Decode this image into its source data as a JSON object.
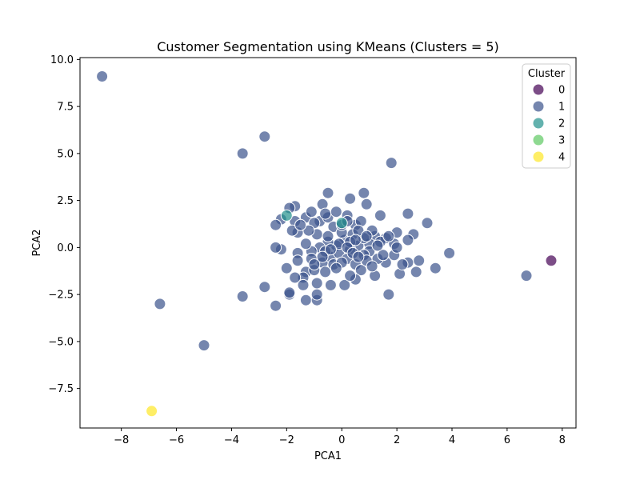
{
  "chart_data": {
    "type": "scatter",
    "title": "Customer Segmentation using KMeans (Clusters = 5)",
    "xlabel": "PCA1",
    "ylabel": "PCA2",
    "xlim": [
      -9.5,
      8.5
    ],
    "ylim": [
      -9.6,
      10.1
    ],
    "xticks": [
      -8,
      -6,
      -4,
      -2,
      0,
      2,
      4,
      6,
      8
    ],
    "yticks": [
      -7.5,
      -5.0,
      -2.5,
      0.0,
      2.5,
      5.0,
      7.5,
      10.0
    ],
    "xtick_labels": [
      "−8",
      "−6",
      "−4",
      "−2",
      "0",
      "2",
      "4",
      "6",
      "8"
    ],
    "ytick_labels": [
      "−7.5",
      "−5.0",
      "−2.5",
      "0.0",
      "2.5",
      "5.0",
      "7.5",
      "10.0"
    ],
    "grid": false,
    "legend": {
      "title": "Cluster",
      "placement": "top-right",
      "entries": [
        "0",
        "1",
        "2",
        "3",
        "4"
      ]
    },
    "series": [
      {
        "name": "0",
        "color": "#440154",
        "points": [
          [
            7.6,
            -0.7
          ]
        ]
      },
      {
        "name": "1",
        "color": "#3b528b",
        "points": [
          [
            -8.7,
            9.1
          ],
          [
            -2.8,
            5.9
          ],
          [
            -3.6,
            5.0
          ],
          [
            1.8,
            4.5
          ],
          [
            -6.6,
            -3.0
          ],
          [
            -5.0,
            -5.2
          ],
          [
            6.7,
            -1.5
          ],
          [
            -3.6,
            -2.6
          ],
          [
            -2.8,
            -2.1
          ],
          [
            -2.4,
            -3.1
          ],
          [
            -1.9,
            -2.5
          ],
          [
            -1.9,
            -2.4
          ],
          [
            -1.3,
            -2.8
          ],
          [
            -0.9,
            -2.8
          ],
          [
            -0.9,
            -2.5
          ],
          [
            -0.4,
            -2.0
          ],
          [
            0.1,
            -2.0
          ],
          [
            -0.5,
            2.9
          ],
          [
            0.8,
            2.9
          ],
          [
            0.3,
            2.6
          ],
          [
            0.9,
            2.3
          ],
          [
            -0.7,
            2.3
          ],
          [
            -1.7,
            2.2
          ],
          [
            -1.9,
            2.1
          ],
          [
            -2.2,
            1.5
          ],
          [
            -2.4,
            1.2
          ],
          [
            -1.7,
            1.4
          ],
          [
            -1.6,
            0.8
          ],
          [
            -1.3,
            1.6
          ],
          [
            -1.1,
            1.9
          ],
          [
            -0.8,
            1.4
          ],
          [
            -0.5,
            1.6
          ],
          [
            -0.2,
            1.9
          ],
          [
            0.2,
            1.7
          ],
          [
            0.5,
            1.2
          ],
          [
            0.7,
            1.4
          ],
          [
            1.4,
            1.7
          ],
          [
            2.4,
            1.8
          ],
          [
            3.1,
            1.3
          ],
          [
            2.6,
            0.7
          ],
          [
            2.4,
            0.4
          ],
          [
            2.0,
            0.8
          ],
          [
            1.6,
            0.5
          ],
          [
            1.2,
            0.6
          ],
          [
            1.0,
            0.2
          ],
          [
            0.6,
            0.1
          ],
          [
            0.3,
            -0.1
          ],
          [
            0.1,
            0.4
          ],
          [
            -0.2,
            0.1
          ],
          [
            -0.5,
            0.3
          ],
          [
            -0.8,
            0.0
          ],
          [
            -1.1,
            -0.2
          ],
          [
            -1.3,
            0.2
          ],
          [
            -1.6,
            -0.3
          ],
          [
            -2.2,
            -0.1
          ],
          [
            -2.4,
            0.0
          ],
          [
            -1.6,
            -0.7
          ],
          [
            -1.3,
            -1.3
          ],
          [
            -1.0,
            -1.2
          ],
          [
            -0.7,
            -0.8
          ],
          [
            -0.4,
            -0.5
          ],
          [
            -0.1,
            -0.3
          ],
          [
            0.2,
            -0.6
          ],
          [
            0.5,
            -0.9
          ],
          [
            0.7,
            -1.2
          ],
          [
            0.5,
            -1.7
          ],
          [
            0.3,
            -1.5
          ],
          [
            1.2,
            -1.5
          ],
          [
            1.6,
            -0.8
          ],
          [
            1.9,
            -0.4
          ],
          [
            2.1,
            -1.4
          ],
          [
            2.4,
            -0.8
          ],
          [
            2.7,
            -1.3
          ],
          [
            2.8,
            -0.7
          ],
          [
            3.4,
            -1.1
          ],
          [
            3.9,
            -0.3
          ],
          [
            1.7,
            -2.5
          ],
          [
            1.3,
            -0.6
          ],
          [
            1.0,
            -0.2
          ],
          [
            0.8,
            -0.4
          ],
          [
            -0.6,
            -0.2
          ],
          [
            -0.3,
            -0.9
          ],
          [
            0.0,
            -0.8
          ],
          [
            0.4,
            0.7
          ],
          [
            0.8,
            0.5
          ],
          [
            -0.9,
            0.7
          ],
          [
            -1.4,
            -1.6
          ],
          [
            -1.7,
            -1.6
          ],
          [
            -1.1,
            -0.6
          ],
          [
            -0.6,
            -1.3
          ],
          [
            0.9,
            -0.7
          ],
          [
            1.4,
            0.3
          ],
          [
            -0.3,
            1.1
          ],
          [
            0.0,
            0.8
          ],
          [
            0.6,
            0.9
          ],
          [
            -1.0,
            1.3
          ],
          [
            1.9,
            0.2
          ],
          [
            2.2,
            -0.9
          ],
          [
            1.5,
            -0.4
          ],
          [
            -0.9,
            -1.9
          ],
          [
            -1.4,
            -2.0
          ],
          [
            0.3,
            0.3
          ],
          [
            -0.1,
            0.2
          ],
          [
            0.2,
            0.0
          ],
          [
            0.5,
            0.4
          ],
          [
            -0.4,
            -0.1
          ],
          [
            1.1,
            0.9
          ],
          [
            -1.2,
            0.9
          ],
          [
            0.0,
            1.2
          ],
          [
            -0.7,
            -0.5
          ],
          [
            0.4,
            -0.3
          ],
          [
            1.7,
            0.6
          ],
          [
            2.0,
            0.0
          ],
          [
            -1.8,
            0.9
          ],
          [
            0.6,
            -0.5
          ],
          [
            1.3,
            0.1
          ],
          [
            -0.5,
            0.6
          ],
          [
            0.9,
            0.6
          ],
          [
            -1.0,
            -0.9
          ],
          [
            -2.0,
            -1.1
          ],
          [
            -0.2,
            -1.1
          ],
          [
            1.1,
            -1.0
          ],
          [
            0.2,
            1.4
          ],
          [
            -0.6,
            1.8
          ],
          [
            -1.5,
            1.2
          ]
        ]
      },
      {
        "name": "2",
        "color": "#21918c",
        "points": [
          [
            -2.0,
            1.7
          ],
          [
            0.0,
            1.3
          ]
        ]
      },
      {
        "name": "3",
        "color": "#5ec962",
        "points": []
      },
      {
        "name": "4",
        "color": "#fde725",
        "points": [
          [
            -6.9,
            -8.7
          ]
        ]
      }
    ]
  }
}
